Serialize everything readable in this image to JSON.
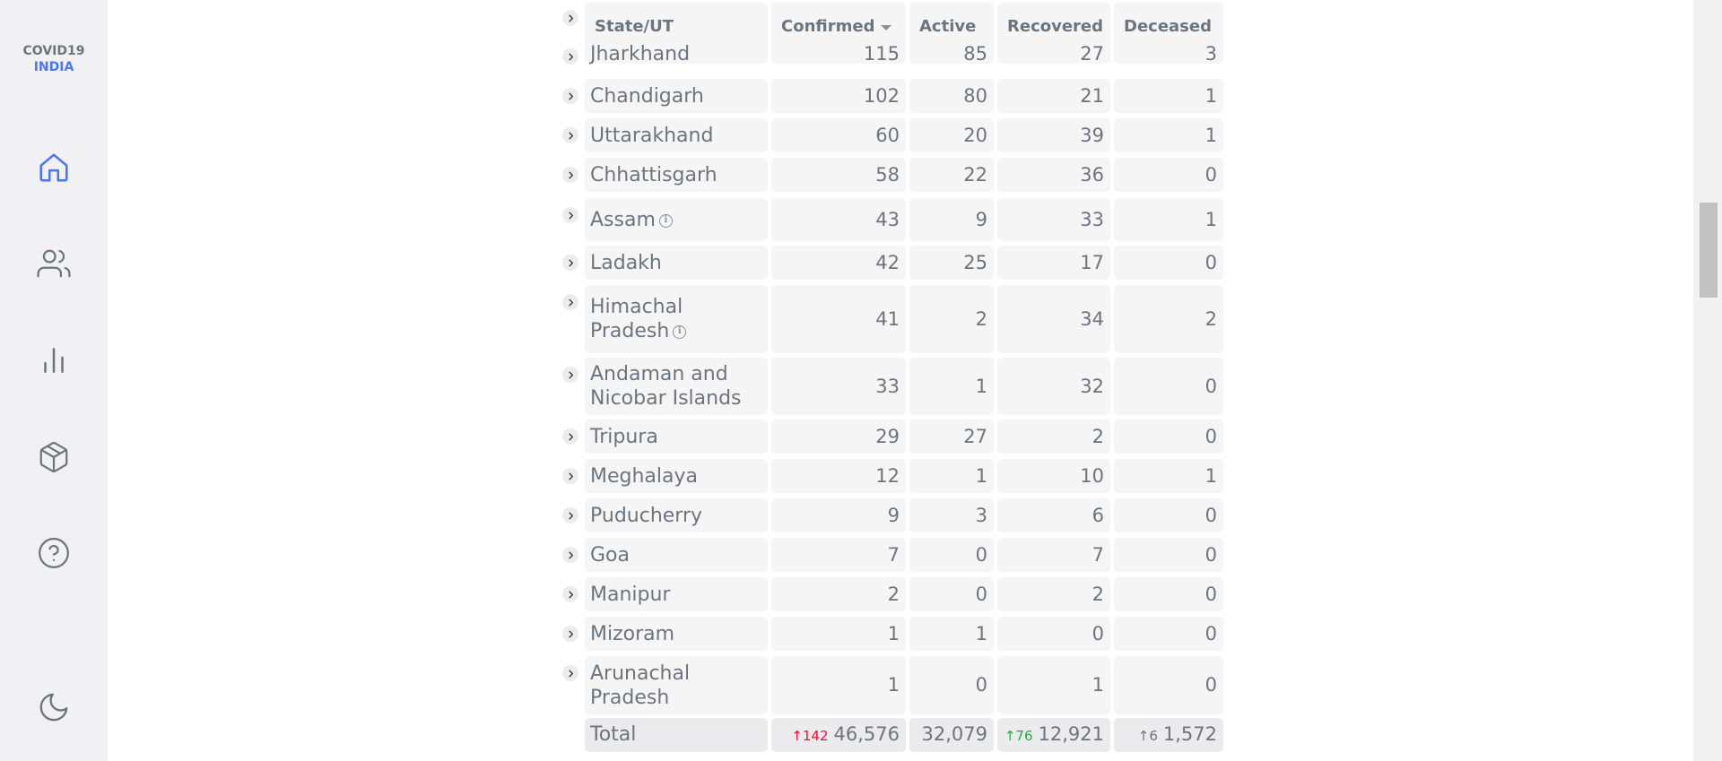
{
  "sidebar": {
    "logo_line1": "COVID19",
    "logo_line2": "INDIA",
    "nav": [
      "home-icon",
      "users-icon",
      "bar-chart-icon",
      "package-icon",
      "help-icon",
      "moon-icon"
    ]
  },
  "colors": {
    "accent": "#4c75f2",
    "confirmed_delta": "#ff073a",
    "recovered_delta": "#28a745",
    "text": "#6c757d",
    "cell_bg": "#f5f5f6"
  },
  "table": {
    "headers": [
      "State/UT",
      "Confirmed",
      "Active",
      "Recovered",
      "Deceased"
    ],
    "rows": [
      {
        "name": "Jharkhand",
        "confirmed": "115",
        "active": "85",
        "recovered": "27",
        "deceased": "3"
      },
      {
        "name": "Chandigarh",
        "confirmed": "102",
        "active": "80",
        "recovered": "21",
        "deceased": "1"
      },
      {
        "name": "Uttarakhand",
        "confirmed": "60",
        "active": "20",
        "recovered": "39",
        "deceased": "1"
      },
      {
        "name": "Chhattisgarh",
        "confirmed": "58",
        "active": "22",
        "recovered": "36",
        "deceased": "0"
      },
      {
        "name": "Assam",
        "confirmed": "43",
        "active": "9",
        "recovered": "33",
        "deceased": "1",
        "info": true
      },
      {
        "name": "Ladakh",
        "confirmed": "42",
        "active": "25",
        "recovered": "17",
        "deceased": "0"
      },
      {
        "name_line1": "Himachal",
        "name_line2": "Pradesh",
        "confirmed": "41",
        "active": "2",
        "recovered": "34",
        "deceased": "2",
        "info": true
      },
      {
        "name_line1": "Andaman and",
        "name_line2": "Nicobar Islands",
        "confirmed": "33",
        "active": "1",
        "recovered": "32",
        "deceased": "0"
      },
      {
        "name": "Tripura",
        "confirmed": "29",
        "active": "27",
        "recovered": "2",
        "deceased": "0"
      },
      {
        "name": "Meghalaya",
        "confirmed": "12",
        "active": "1",
        "recovered": "10",
        "deceased": "1"
      },
      {
        "name": "Puducherry",
        "confirmed": "9",
        "active": "3",
        "recovered": "6",
        "deceased": "0"
      },
      {
        "name": "Goa",
        "confirmed": "7",
        "active": "0",
        "recovered": "7",
        "deceased": "0"
      },
      {
        "name": "Manipur",
        "confirmed": "2",
        "active": "0",
        "recovered": "2",
        "deceased": "0"
      },
      {
        "name": "Mizoram",
        "confirmed": "1",
        "active": "1",
        "recovered": "0",
        "deceased": "0"
      },
      {
        "name_line1": "Arunachal",
        "name_line2": "Pradesh",
        "confirmed": "1",
        "active": "0",
        "recovered": "1",
        "deceased": "0"
      }
    ],
    "total": {
      "label": "Total",
      "confirmed": "46,576",
      "confirmed_delta": "↑142",
      "active": "32,079",
      "recovered": "12,921",
      "recovered_delta": "↑76",
      "deceased": "1,572",
      "deceased_delta": "↑6"
    }
  }
}
